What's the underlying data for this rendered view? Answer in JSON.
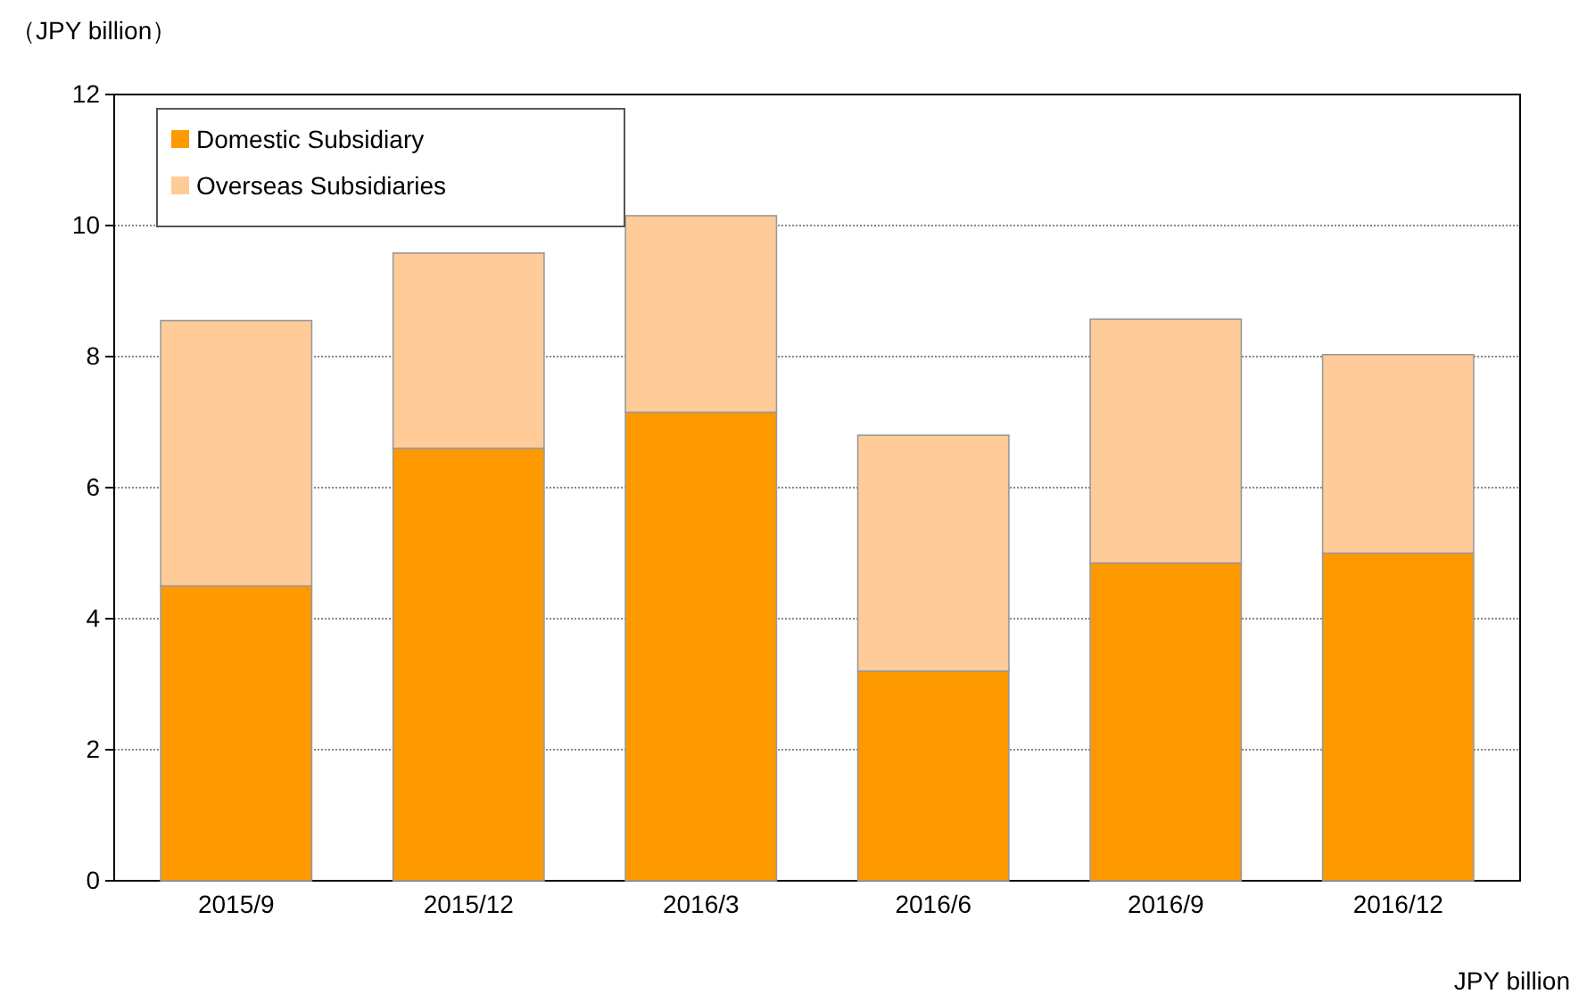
{
  "chart_data": {
    "type": "bar",
    "stacked": true,
    "ylabel": "（JPY billion）",
    "annotations": [
      "JPY billion"
    ],
    "categories": [
      "2015/9",
      "2015/12",
      "2016/3",
      "2016/6",
      "2016/9",
      "2016/12"
    ],
    "series": [
      {
        "name": "Domestic Subsidiary",
        "color": "#ff9900",
        "values": [
          4.5,
          6.6,
          7.15,
          3.2,
          4.85,
          5.0
        ]
      },
      {
        "name": "Overseas Subsidiaries",
        "color": "#ffcc99",
        "values": [
          4.05,
          2.98,
          3.0,
          3.6,
          3.72,
          3.03
        ]
      }
    ],
    "ylim": [
      0,
      12
    ],
    "yticks": [
      0,
      2,
      4,
      6,
      8,
      10,
      12
    ],
    "grid": "y",
    "legend": "top left"
  }
}
